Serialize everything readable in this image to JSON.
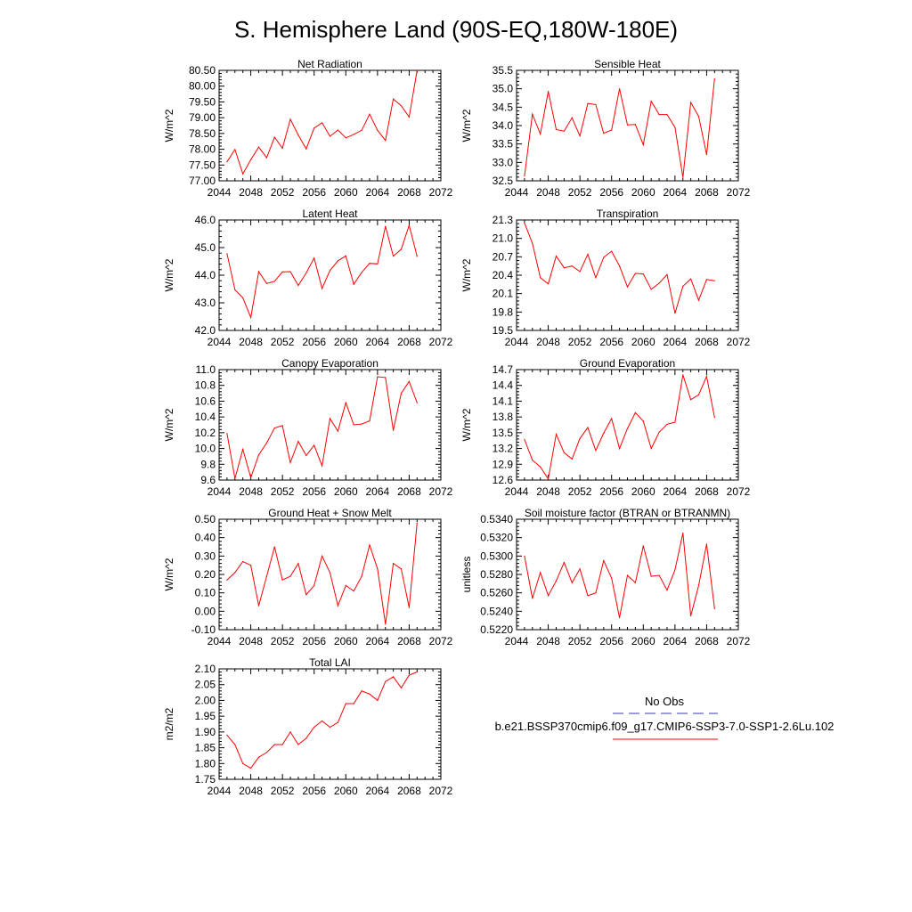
{
  "title": "S. Hemisphere Land (90S-EQ,180W-180E)",
  "colors": {
    "model": "#ff0000",
    "obs": "#3b3bb0",
    "axis": "#000000"
  },
  "legend": {
    "obs_label": "No Obs",
    "model_label": "b.e21.BSSP370cmip6.f09_g17.CMIP6-SSP3-7.0-SSP1-2.6Lu.102"
  },
  "chart_data": [
    {
      "type": "line",
      "title": "Net Radiation",
      "ylabel": "W/m^2",
      "xlim": [
        2044,
        2072
      ],
      "ylim": [
        77.0,
        80.5
      ],
      "xticks": [
        "2044",
        "2048",
        "2052",
        "2056",
        "2060",
        "2064",
        "2068",
        "2072"
      ],
      "yticks": [
        "77.00",
        "77.50",
        "78.00",
        "78.50",
        "79.00",
        "79.50",
        "80.00",
        "80.50"
      ],
      "x": [
        2045,
        2046,
        2047,
        2048,
        2049,
        2050,
        2051,
        2052,
        2053,
        2054,
        2055,
        2056,
        2057,
        2058,
        2059,
        2060,
        2061,
        2062,
        2063,
        2064,
        2065,
        2066,
        2067,
        2068,
        2069
      ],
      "series": [
        {
          "values": [
            77.6,
            77.99,
            77.22,
            77.67,
            78.07,
            77.73,
            78.38,
            78.03,
            78.95,
            78.45,
            78.01,
            78.67,
            78.84,
            78.41,
            78.61,
            78.36,
            78.47,
            78.6,
            79.11,
            78.6,
            78.28,
            79.59,
            79.38,
            79.02,
            80.5
          ]
        }
      ]
    },
    {
      "type": "line",
      "title": "Sensible Heat",
      "ylabel": "W/m^2",
      "xlim": [
        2044,
        2072
      ],
      "ylim": [
        32.5,
        35.5
      ],
      "xticks": [
        "2044",
        "2048",
        "2052",
        "2056",
        "2060",
        "2064",
        "2068",
        "2072"
      ],
      "yticks": [
        "32.5",
        "33.0",
        "33.5",
        "34.0",
        "34.5",
        "35.0",
        "35.5"
      ],
      "x": [
        2045,
        2046,
        2047,
        2048,
        2049,
        2050,
        2051,
        2052,
        2053,
        2054,
        2055,
        2056,
        2057,
        2058,
        2059,
        2060,
        2061,
        2062,
        2063,
        2064,
        2065,
        2066,
        2067,
        2068,
        2069
      ],
      "series": [
        {
          "values": [
            32.63,
            34.31,
            33.77,
            34.93,
            33.89,
            33.85,
            34.21,
            33.72,
            34.6,
            34.57,
            33.79,
            33.88,
            35.0,
            34.02,
            34.03,
            33.48,
            34.66,
            34.3,
            34.3,
            33.95,
            32.59,
            34.63,
            34.25,
            33.21,
            35.27
          ]
        }
      ]
    },
    {
      "type": "line",
      "title": "Latent Heat",
      "ylabel": "W/m^2",
      "xlim": [
        2044,
        2072
      ],
      "ylim": [
        42.0,
        46.0
      ],
      "xticks": [
        "2044",
        "2048",
        "2052",
        "2056",
        "2060",
        "2064",
        "2068",
        "2072"
      ],
      "yticks": [
        "42.0",
        "43.0",
        "44.0",
        "45.0",
        "46.0"
      ],
      "x": [
        2045,
        2046,
        2047,
        2048,
        2049,
        2050,
        2051,
        2052,
        2053,
        2054,
        2055,
        2056,
        2057,
        2058,
        2059,
        2060,
        2061,
        2062,
        2063,
        2064,
        2065,
        2066,
        2067,
        2068,
        2069
      ],
      "series": [
        {
          "values": [
            44.78,
            43.47,
            43.18,
            42.47,
            44.13,
            43.7,
            43.78,
            44.12,
            44.13,
            43.63,
            44.08,
            44.62,
            43.52,
            44.17,
            44.52,
            44.7,
            43.67,
            44.1,
            44.43,
            44.41,
            45.77,
            44.69,
            44.94,
            45.81,
            44.68
          ]
        }
      ]
    },
    {
      "type": "line",
      "title": "Transpiration",
      "ylabel": "W/m^2",
      "xlim": [
        2044,
        2072
      ],
      "ylim": [
        19.5,
        21.3
      ],
      "xticks": [
        "2044",
        "2048",
        "2052",
        "2056",
        "2060",
        "2064",
        "2068",
        "2072"
      ],
      "yticks": [
        "19.5",
        "19.8",
        "20.1",
        "20.4",
        "20.7",
        "21.0",
        "21.3"
      ],
      "x": [
        2045,
        2046,
        2047,
        2048,
        2049,
        2050,
        2051,
        2052,
        2053,
        2054,
        2055,
        2056,
        2057,
        2058,
        2059,
        2060,
        2061,
        2062,
        2063,
        2064,
        2065,
        2066,
        2067,
        2068,
        2069
      ],
      "series": [
        {
          "values": [
            21.25,
            20.92,
            20.36,
            20.26,
            20.71,
            20.52,
            20.55,
            20.46,
            20.74,
            20.36,
            20.69,
            20.79,
            20.55,
            20.21,
            20.43,
            20.42,
            20.17,
            20.27,
            20.41,
            19.78,
            20.22,
            20.34,
            19.99,
            20.33,
            20.31
          ]
        }
      ]
    },
    {
      "type": "line",
      "title": "Canopy Evaporation",
      "ylabel": "W/m^2",
      "xlim": [
        2044,
        2072
      ],
      "ylim": [
        9.6,
        11.0
      ],
      "xticks": [
        "2044",
        "2048",
        "2052",
        "2056",
        "2060",
        "2064",
        "2068",
        "2072"
      ],
      "yticks": [
        "9.6",
        "9.8",
        "10.0",
        "10.2",
        "10.4",
        "10.6",
        "10.8",
        "11.0"
      ],
      "x": [
        2045,
        2046,
        2047,
        2048,
        2049,
        2050,
        2051,
        2052,
        2053,
        2054,
        2055,
        2056,
        2057,
        2058,
        2059,
        2060,
        2061,
        2062,
        2063,
        2064,
        2065,
        2066,
        2067,
        2068,
        2069
      ],
      "series": [
        {
          "values": [
            10.19,
            9.62,
            9.99,
            9.63,
            9.92,
            10.07,
            10.26,
            10.29,
            9.82,
            10.09,
            9.91,
            10.04,
            9.78,
            10.38,
            10.22,
            10.58,
            10.3,
            10.31,
            10.35,
            10.91,
            10.9,
            10.23,
            10.7,
            10.85,
            10.58
          ]
        }
      ]
    },
    {
      "type": "line",
      "title": "Ground Evaporation",
      "ylabel": "W/m^2",
      "xlim": [
        2044,
        2072
      ],
      "ylim": [
        12.6,
        14.7
      ],
      "xticks": [
        "2044",
        "2048",
        "2052",
        "2056",
        "2060",
        "2064",
        "2068",
        "2072"
      ],
      "yticks": [
        "12.6",
        "12.9",
        "13.2",
        "13.5",
        "13.8",
        "14.1",
        "14.4",
        "14.7"
      ],
      "x": [
        2045,
        2046,
        2047,
        2048,
        2049,
        2050,
        2051,
        2052,
        2053,
        2054,
        2055,
        2056,
        2057,
        2058,
        2059,
        2060,
        2061,
        2062,
        2063,
        2064,
        2065,
        2066,
        2067,
        2068,
        2069
      ],
      "series": [
        {
          "values": [
            13.37,
            12.98,
            12.85,
            12.62,
            13.47,
            13.12,
            13.0,
            13.39,
            13.6,
            13.16,
            13.49,
            13.77,
            13.2,
            13.58,
            13.88,
            13.72,
            13.2,
            13.51,
            13.66,
            13.7,
            14.6,
            14.13,
            14.22,
            14.57,
            13.79
          ]
        }
      ]
    },
    {
      "type": "line",
      "title": "Ground Heat + Snow Melt",
      "ylabel": "W/m^2",
      "xlim": [
        2044,
        2072
      ],
      "ylim": [
        -0.1,
        0.5
      ],
      "xticks": [
        "2044",
        "2048",
        "2052",
        "2056",
        "2060",
        "2064",
        "2068",
        "2072"
      ],
      "yticks": [
        "-0.10",
        "0.00",
        "0.10",
        "0.20",
        "0.30",
        "0.40",
        "0.50"
      ],
      "x": [
        2045,
        2046,
        2047,
        2048,
        2049,
        2050,
        2051,
        2052,
        2053,
        2054,
        2055,
        2056,
        2057,
        2058,
        2059,
        2060,
        2061,
        2062,
        2063,
        2064,
        2065,
        2066,
        2067,
        2068,
        2069
      ],
      "series": [
        {
          "values": [
            0.17,
            0.21,
            0.27,
            0.25,
            0.03,
            0.19,
            0.35,
            0.17,
            0.19,
            0.26,
            0.09,
            0.14,
            0.3,
            0.21,
            0.03,
            0.14,
            0.11,
            0.19,
            0.36,
            0.23,
            -0.07,
            0.26,
            0.23,
            0.02,
            0.48
          ]
        }
      ]
    },
    {
      "type": "line",
      "title": "Soil moisture factor (BTRAN or BTRANMN)",
      "ylabel": "unitless",
      "xlim": [
        2044,
        2072
      ],
      "ylim": [
        0.522,
        0.534
      ],
      "xticks": [
        "2044",
        "2048",
        "2052",
        "2056",
        "2060",
        "2064",
        "2068",
        "2072"
      ],
      "yticks": [
        "0.5220",
        "0.5240",
        "0.5260",
        "0.5280",
        "0.5300",
        "0.5320",
        "0.5340"
      ],
      "x": [
        2045,
        2046,
        2047,
        2048,
        2049,
        2050,
        2051,
        2052,
        2053,
        2054,
        2055,
        2056,
        2057,
        2058,
        2059,
        2060,
        2061,
        2062,
        2063,
        2064,
        2065,
        2066,
        2067,
        2068,
        2069
      ],
      "series": [
        {
          "values": [
            0.53,
            0.5254,
            0.5282,
            0.5257,
            0.5273,
            0.5293,
            0.5271,
            0.5286,
            0.5257,
            0.526,
            0.5295,
            0.5276,
            0.5233,
            0.5279,
            0.5271,
            0.5311,
            0.5278,
            0.5279,
            0.5263,
            0.5285,
            0.5325,
            0.5235,
            0.5268,
            0.5313,
            0.5243
          ]
        }
      ]
    },
    {
      "type": "line",
      "title": "Total LAI",
      "ylabel": "m2/m2",
      "xlim": [
        2044,
        2072
      ],
      "ylim": [
        1.75,
        2.1
      ],
      "xticks": [
        "2044",
        "2048",
        "2052",
        "2056",
        "2060",
        "2064",
        "2068",
        "2072"
      ],
      "yticks": [
        "1.75",
        "1.80",
        "1.85",
        "1.90",
        "1.95",
        "2.00",
        "2.05",
        "2.10"
      ],
      "x": [
        2045,
        2046,
        2047,
        2048,
        2049,
        2050,
        2051,
        2052,
        2053,
        2054,
        2055,
        2056,
        2057,
        2058,
        2059,
        2060,
        2061,
        2062,
        2063,
        2064,
        2065,
        2066,
        2067,
        2068,
        2069
      ],
      "series": [
        {
          "values": [
            1.89,
            1.86,
            1.8,
            1.785,
            1.82,
            1.835,
            1.86,
            1.86,
            1.9,
            1.86,
            1.88,
            1.915,
            1.935,
            1.915,
            1.93,
            1.99,
            1.99,
            2.03,
            2.02,
            2.0,
            2.06,
            2.075,
            2.04,
            2.08,
            2.09
          ]
        }
      ]
    }
  ]
}
